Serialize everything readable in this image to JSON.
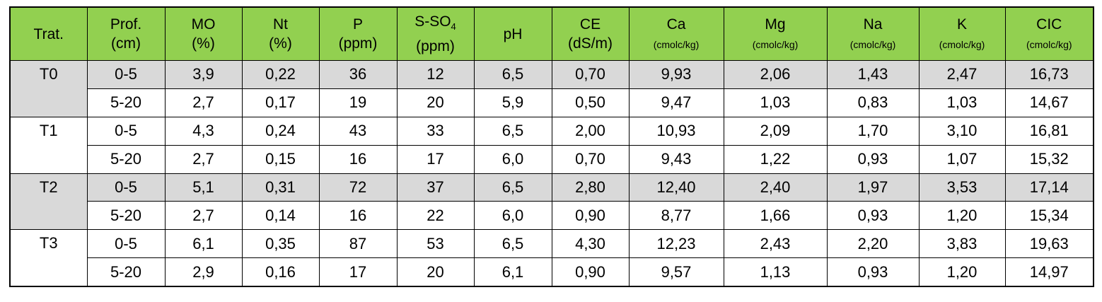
{
  "table": {
    "header": [
      {
        "text": "Trat."
      },
      {
        "text": "Prof.",
        "unit": "(cm)"
      },
      {
        "text": "MO",
        "unit": "(%)"
      },
      {
        "text": "Nt",
        "unit": "(%)"
      },
      {
        "text": "P",
        "unit": "(ppm)"
      },
      {
        "text": "S-SO",
        "sub": "4",
        "unit": "(ppm)"
      },
      {
        "text": "pH"
      },
      {
        "text": "CE",
        "unit": "(dS/m)"
      },
      {
        "text": "Ca",
        "small_unit": "(cmolc/kg)"
      },
      {
        "text": "Mg",
        "small_unit": "(cmolc/kg)"
      },
      {
        "text": "Na",
        "small_unit": "(cmolc/kg)"
      },
      {
        "text": "K",
        "small_unit": "(cmolc/kg)"
      },
      {
        "text": "CIC",
        "small_unit": "(cmolc/kg)"
      }
    ],
    "groups": [
      {
        "treatment": "T0",
        "rows": [
          [
            "0-5",
            "3,9",
            "0,22",
            "36",
            "12",
            "6,5",
            "0,70",
            "9,93",
            "2,06",
            "1,43",
            "2,47",
            "16,73"
          ],
          [
            "5-20",
            "2,7",
            "0,17",
            "19",
            "20",
            "5,9",
            "0,50",
            "9,47",
            "1,03",
            "0,83",
            "1,03",
            "14,67"
          ]
        ]
      },
      {
        "treatment": "T1",
        "rows": [
          [
            "0-5",
            "4,3",
            "0,24",
            "43",
            "33",
            "6,5",
            "2,00",
            "10,93",
            "2,09",
            "1,70",
            "3,10",
            "16,81"
          ],
          [
            "5-20",
            "2,7",
            "0,15",
            "16",
            "17",
            "6,0",
            "0,70",
            "9,43",
            "1,22",
            "0,93",
            "1,07",
            "15,32"
          ]
        ]
      },
      {
        "treatment": "T2",
        "rows": [
          [
            "0-5",
            "5,1",
            "0,31",
            "72",
            "37",
            "6,5",
            "2,80",
            "12,40",
            "2,40",
            "1,97",
            "3,53",
            "17,14"
          ],
          [
            "5-20",
            "2,7",
            "0,14",
            "16",
            "22",
            "6,0",
            "0,90",
            "8,77",
            "1,66",
            "0,93",
            "1,20",
            "15,34"
          ]
        ]
      },
      {
        "treatment": "T3",
        "rows": [
          [
            "0-5",
            "6,1",
            "0,35",
            "87",
            "53",
            "6,5",
            "4,30",
            "12,23",
            "2,43",
            "2,20",
            "3,83",
            "19,63"
          ],
          [
            "5-20",
            "2,9",
            "0,16",
            "17",
            "20",
            "6,1",
            "0,90",
            "9,57",
            "1,13",
            "0,93",
            "1,20",
            "14,97"
          ]
        ]
      }
    ]
  }
}
